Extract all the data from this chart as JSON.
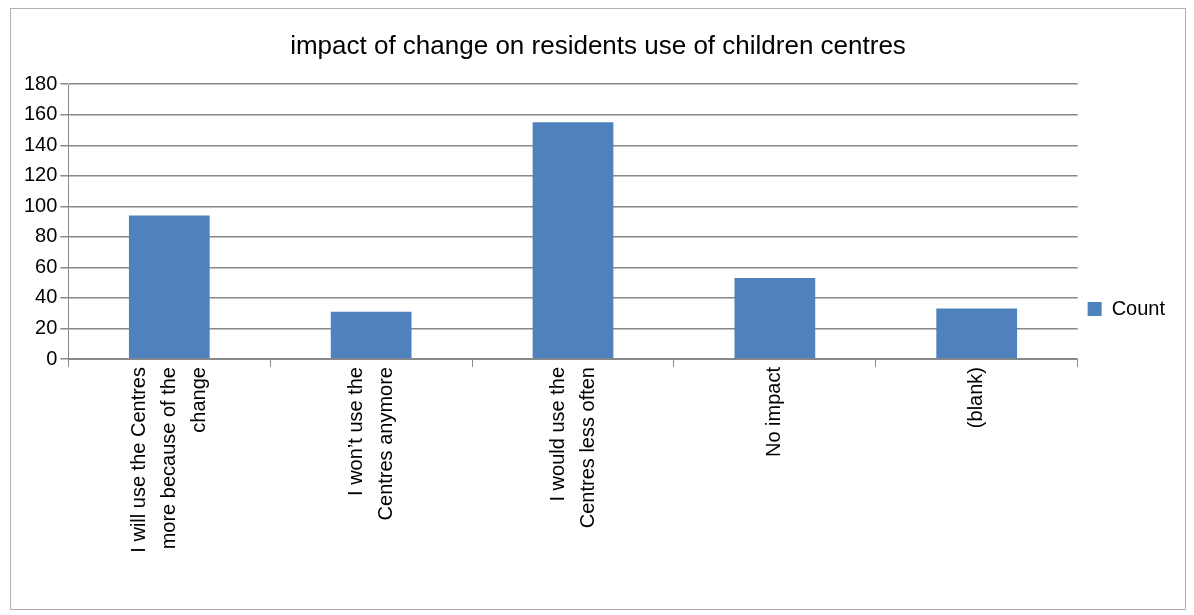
{
  "chart_data": {
    "type": "bar",
    "title": "impact of change on residents use of children centres",
    "categories": [
      "I will use the Centres more because of the change",
      "I won’t use the Centres anymore",
      "I would use the Centres less often",
      "No impact",
      "(blank)"
    ],
    "series": [
      {
        "name": "Count",
        "color": "#4f81bd",
        "values": [
          94,
          31,
          155,
          53,
          33
        ]
      }
    ],
    "ylim": [
      0,
      180
    ],
    "yticks": [
      0,
      20,
      40,
      60,
      80,
      100,
      120,
      140,
      160,
      180
    ],
    "grid": "y",
    "legend": "right"
  }
}
